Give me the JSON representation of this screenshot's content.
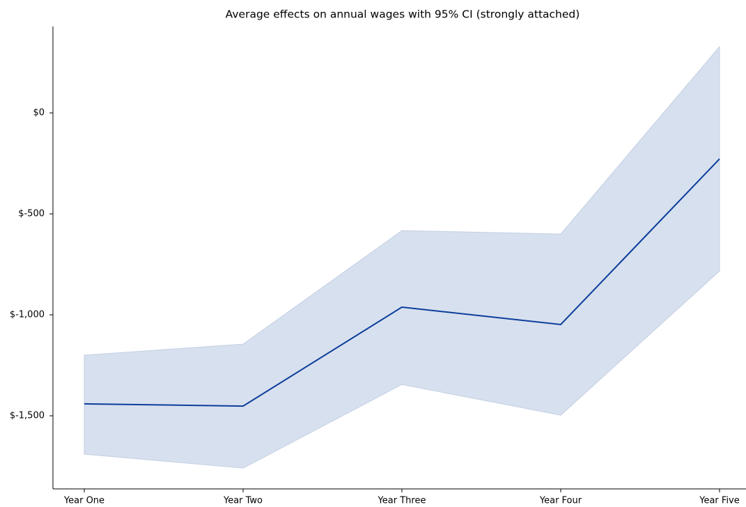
{
  "chart_data": {
    "type": "line",
    "title": "Average effects on annual wages with 95% CI (strongly attached)",
    "categories": [
      "Year One",
      "Year Two",
      "Year Three",
      "Year Four",
      "Year Five"
    ],
    "values": [
      -1441,
      -1452,
      -962,
      -1048,
      -228
    ],
    "ci_upper": [
      -1200,
      -1145,
      -583,
      -600,
      328
    ],
    "ci_lower": [
      -1690,
      -1759,
      -1345,
      -1497,
      -783
    ],
    "color": "#0b3d9c",
    "band_color": "#d7e0ee",
    "band_edge": "#c3cfe4",
    "ylim": [
      -1862,
      428
    ],
    "yticks": [
      {
        "value": -1500,
        "label": "$-1,500"
      },
      {
        "value": -1000,
        "label": "$-1,000"
      },
      {
        "value": -500,
        "label": "$-500"
      },
      {
        "value": 0,
        "label": "$0"
      }
    ]
  }
}
